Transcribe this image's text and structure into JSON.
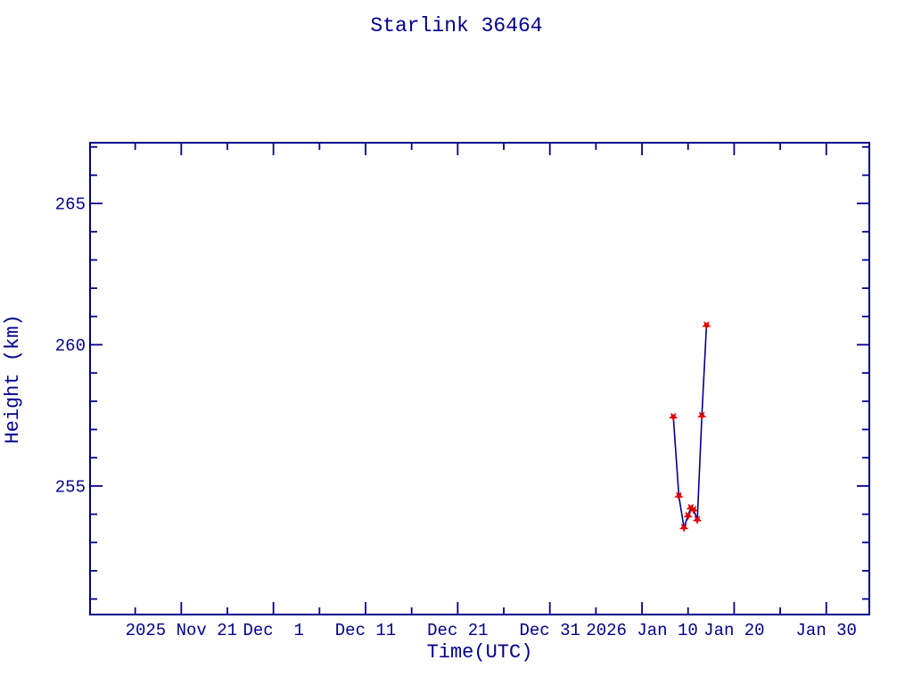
{
  "page": {
    "background_color": "#ffffff"
  },
  "chart_data": {
    "type": "line",
    "title": "Starlink 36464",
    "xlabel": "Time(UTC)",
    "ylabel": "Height (km)",
    "colors": {
      "text": "#00008b",
      "axis": "#00008b",
      "line": "#00008b",
      "marker": "#dd0000",
      "background": "#ffffff"
    },
    "legend": "none",
    "grid": "off",
    "x_axis": {
      "label": "Time(UTC)",
      "unit_note": "day offsets measured from 2025 Dec 1",
      "day_min": -19.9,
      "day_max": 64.67,
      "major_ticks": [
        {
          "day": -10,
          "label": "2025 Nov 21"
        },
        {
          "day": 0,
          "label": "Dec  1"
        },
        {
          "day": 10,
          "label": "Dec 11"
        },
        {
          "day": 20,
          "label": "Dec 21"
        },
        {
          "day": 30,
          "label": "Dec 31"
        },
        {
          "day": 40,
          "label": "2026 Jan 10"
        },
        {
          "day": 50,
          "label": "Jan 20"
        },
        {
          "day": 60,
          "label": "Jan 30"
        }
      ],
      "minor_tick_days": [
        -15,
        -5,
        5,
        15,
        25,
        35,
        45,
        55
      ]
    },
    "y_axis": {
      "label": "Height (km)",
      "min": 250.45,
      "max": 267.15,
      "major_ticks": [
        {
          "value": 255,
          "label": "255"
        },
        {
          "value": 260,
          "label": "260"
        },
        {
          "value": 265,
          "label": "265"
        }
      ],
      "minor_tick_values": [
        251,
        252,
        253,
        254,
        256,
        257,
        258,
        259,
        261,
        262,
        263,
        264,
        266,
        267
      ]
    },
    "series": [
      {
        "name": "height",
        "marker": "red-star",
        "points": [
          {
            "date": "2026 Jan 13.4",
            "day": 43.4,
            "height_km": 257.45
          },
          {
            "date": "2026 Jan 14.0",
            "day": 44.0,
            "height_km": 254.65
          },
          {
            "date": "2026 Jan 14.55",
            "day": 44.55,
            "height_km": 253.53
          },
          {
            "date": "2026 Jan 15.0",
            "day": 45.0,
            "height_km": 253.95
          },
          {
            "date": "2026 Jan 15.3",
            "day": 45.3,
            "height_km": 254.23
          },
          {
            "date": "2026 Jan 15.6",
            "day": 45.6,
            "height_km": 254.16
          },
          {
            "date": "2026 Jan 16.0",
            "day": 46.0,
            "height_km": 253.81
          },
          {
            "date": "2026 Jan 16.5",
            "day": 46.5,
            "height_km": 257.49
          },
          {
            "date": "2026 Jan 17.0",
            "day": 47.0,
            "height_km": 260.69
          }
        ]
      }
    ]
  }
}
